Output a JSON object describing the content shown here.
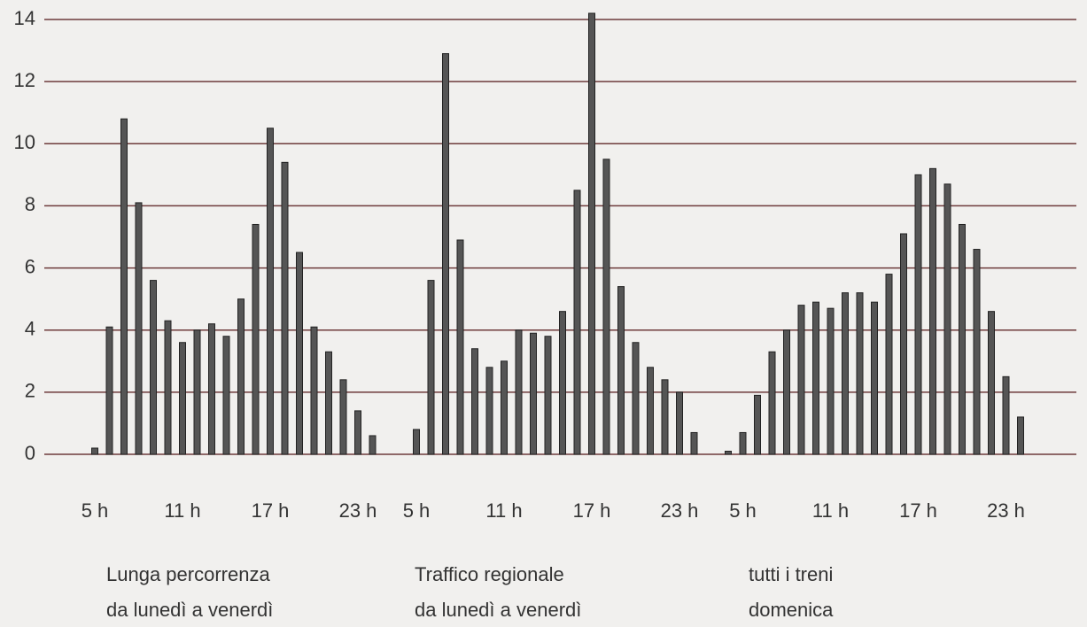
{
  "chart_data": {
    "type": "bar",
    "color": "#555555",
    "grid": true,
    "ylim": [
      0,
      14
    ],
    "yticks": [
      0,
      2,
      4,
      6,
      8,
      10,
      12,
      14
    ],
    "panels": [
      {
        "caption": [
          "Lunga percorrenza",
          "da lunedì a venerdì"
        ],
        "categories": [
          "5 h",
          null,
          null,
          null,
          null,
          null,
          "11 h",
          null,
          null,
          null,
          null,
          null,
          "17 h",
          null,
          null,
          null,
          null,
          null,
          "23 h",
          null
        ],
        "values": [
          0.2,
          4.1,
          10.8,
          8.1,
          5.6,
          4.3,
          3.6,
          4.0,
          4.2,
          3.8,
          5.0,
          7.4,
          10.5,
          9.4,
          6.5,
          4.1,
          3.3,
          2.4,
          1.4,
          0.6
        ]
      },
      {
        "caption": [
          "Traffico regionale",
          "da lunedì a venerdì"
        ],
        "categories": [
          "5 h",
          null,
          null,
          null,
          null,
          null,
          "11 h",
          null,
          null,
          null,
          null,
          null,
          "17 h",
          null,
          null,
          null,
          null,
          null,
          "23 h",
          null
        ],
        "values": [
          0.8,
          5.6,
          12.9,
          6.9,
          3.4,
          2.8,
          3.0,
          4.0,
          3.9,
          3.8,
          4.6,
          8.5,
          14.2,
          9.5,
          5.4,
          3.6,
          2.8,
          2.4,
          2.0,
          0.7
        ]
      },
      {
        "caption": [
          "tutti i treni",
          "domenica"
        ],
        "categories": [
          null,
          "5 h",
          null,
          null,
          null,
          null,
          null,
          "11 h",
          null,
          null,
          null,
          null,
          null,
          "17 h",
          null,
          null,
          null,
          null,
          null,
          "23 h",
          null
        ],
        "values": [
          0.1,
          0.7,
          1.9,
          3.3,
          4.0,
          4.8,
          4.9,
          4.7,
          5.2,
          5.2,
          4.9,
          5.8,
          7.1,
          9.0,
          9.2,
          8.7,
          7.4,
          6.6,
          4.6,
          2.5,
          1.2
        ]
      }
    ]
  }
}
